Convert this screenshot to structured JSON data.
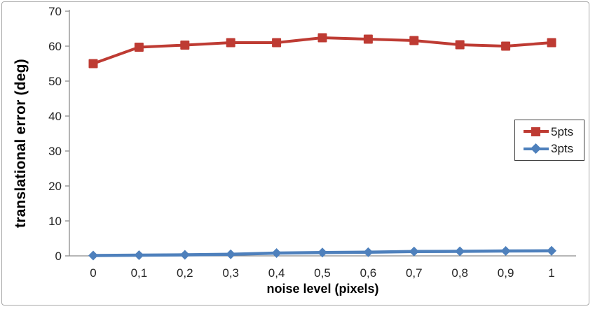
{
  "chart_data": {
    "type": "line",
    "xlabel": "noise level (pixels)",
    "ylabel": "translational error (deg)",
    "x": [
      0,
      0.1,
      0.2,
      0.3,
      0.4,
      0.5,
      0.6,
      0.7,
      0.8,
      0.9,
      1
    ],
    "x_tick_labels": [
      "0",
      "0,1",
      "0,2",
      "0,3",
      "0,4",
      "0,5",
      "0,6",
      "0,7",
      "0,8",
      "0,9",
      "1"
    ],
    "series": [
      {
        "name": "5pts",
        "marker": "square",
        "color": "#be3b33",
        "values": [
          55,
          59.7,
          60.3,
          61,
          61,
          62.4,
          62,
          61.6,
          60.4,
          60,
          61
        ]
      },
      {
        "name": "3pts",
        "marker": "diamond",
        "color": "#4e80bc",
        "values": [
          0.1,
          0.2,
          0.3,
          0.45,
          0.8,
          0.95,
          1.05,
          1.25,
          1.3,
          1.4,
          1.45
        ]
      }
    ],
    "ylim": [
      0,
      70
    ],
    "yticks": [
      0,
      10,
      20,
      30,
      40,
      50,
      60,
      70
    ],
    "grid": false,
    "legend_position": "middle-right",
    "axis_color": "#8c8c8c",
    "text_color": "#262626"
  }
}
